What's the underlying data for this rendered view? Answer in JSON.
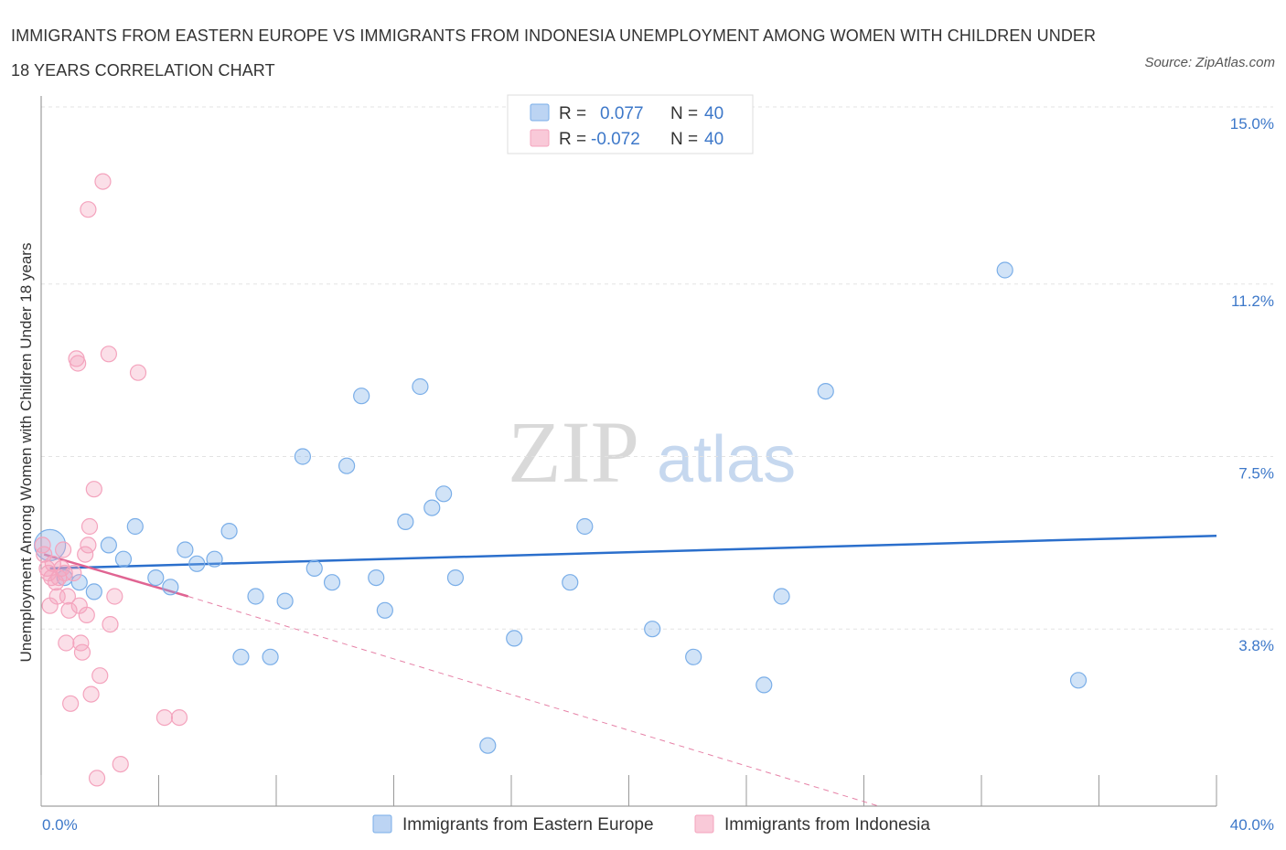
{
  "title": "IMMIGRANTS FROM EASTERN EUROPE VS IMMIGRANTS FROM INDONESIA UNEMPLOYMENT AMONG WOMEN WITH CHILDREN UNDER 18 YEARS CORRELATION CHART",
  "source": "Source: ZipAtlas.com",
  "watermark": {
    "zip": "ZIP",
    "atlas": "atlas"
  },
  "chart_data": {
    "type": "scatter",
    "title": "IMMIGRANTS FROM EASTERN EUROPE VS IMMIGRANTS FROM INDONESIA UNEMPLOYMENT AMONG WOMEN WITH CHILDREN UNDER 18 YEARS CORRELATION CHART",
    "xlabel": "",
    "ylabel": "Unemployment Among Women with Children Under 18 years",
    "xlim": [
      0,
      40
    ],
    "ylim": [
      0,
      15
    ],
    "x_tick_labels": [
      "0.0%",
      "40.0%"
    ],
    "y_ticks": [
      3.8,
      7.5,
      11.2,
      15.0
    ],
    "y_tick_labels": [
      "3.8%",
      "7.5%",
      "11.2%",
      "15.0%"
    ],
    "grid": true,
    "legend_position": "top-center",
    "series": [
      {
        "name": "Immigrants from Eastern Europe",
        "color": "#7aaee8",
        "line_color": "#2b6fcc",
        "R": "0.077",
        "N": "40",
        "trend": {
          "x": [
            0.3,
            40
          ],
          "y": [
            5.1,
            5.8
          ]
        },
        "points": [
          {
            "x": 0.3,
            "y": 5.6,
            "big": true
          },
          {
            "x": 0.8,
            "y": 4.9
          },
          {
            "x": 1.3,
            "y": 4.8
          },
          {
            "x": 1.8,
            "y": 4.6
          },
          {
            "x": 2.3,
            "y": 5.6
          },
          {
            "x": 2.8,
            "y": 5.3
          },
          {
            "x": 3.2,
            "y": 6.0
          },
          {
            "x": 3.9,
            "y": 4.9
          },
          {
            "x": 4.4,
            "y": 4.7
          },
          {
            "x": 4.9,
            "y": 5.5
          },
          {
            "x": 5.3,
            "y": 5.2
          },
          {
            "x": 5.9,
            "y": 5.3
          },
          {
            "x": 6.4,
            "y": 5.9
          },
          {
            "x": 6.8,
            "y": 3.2
          },
          {
            "x": 7.3,
            "y": 4.5
          },
          {
            "x": 7.8,
            "y": 3.2
          },
          {
            "x": 8.3,
            "y": 4.4
          },
          {
            "x": 8.9,
            "y": 7.5
          },
          {
            "x": 9.3,
            "y": 5.1
          },
          {
            "x": 9.9,
            "y": 4.8
          },
          {
            "x": 10.4,
            "y": 7.3
          },
          {
            "x": 10.9,
            "y": 8.8
          },
          {
            "x": 11.4,
            "y": 4.9
          },
          {
            "x": 11.7,
            "y": 4.2
          },
          {
            "x": 12.4,
            "y": 6.1
          },
          {
            "x": 12.9,
            "y": 9.0
          },
          {
            "x": 13.3,
            "y": 6.4
          },
          {
            "x": 13.7,
            "y": 6.7
          },
          {
            "x": 14.1,
            "y": 4.9
          },
          {
            "x": 15.2,
            "y": 1.3
          },
          {
            "x": 16.1,
            "y": 3.6
          },
          {
            "x": 18.0,
            "y": 4.8
          },
          {
            "x": 18.5,
            "y": 6.0
          },
          {
            "x": 20.8,
            "y": 3.8
          },
          {
            "x": 22.2,
            "y": 3.2
          },
          {
            "x": 24.6,
            "y": 2.6
          },
          {
            "x": 25.2,
            "y": 4.5
          },
          {
            "x": 26.7,
            "y": 8.9
          },
          {
            "x": 32.8,
            "y": 11.5
          },
          {
            "x": 35.3,
            "y": 2.7
          }
        ]
      },
      {
        "name": "Immigrants from Indonesia",
        "color": "#f4a3bd",
        "line_color": "#e06492",
        "R": "-0.072",
        "N": "40",
        "trend": {
          "x": [
            0.1,
            5.0
          ],
          "y": [
            5.4,
            4.5
          ]
        },
        "trend_dashed": {
          "x": [
            5.0,
            28.5
          ],
          "y": [
            4.5,
            0.0
          ]
        },
        "points": [
          {
            "x": 0.05,
            "y": 5.6
          },
          {
            "x": 0.1,
            "y": 5.4
          },
          {
            "x": 0.2,
            "y": 5.1
          },
          {
            "x": 0.25,
            "y": 5.0
          },
          {
            "x": 0.3,
            "y": 4.3
          },
          {
            "x": 0.35,
            "y": 4.9
          },
          {
            "x": 0.4,
            "y": 5.2
          },
          {
            "x": 0.5,
            "y": 4.8
          },
          {
            "x": 0.6,
            "y": 4.9
          },
          {
            "x": 0.7,
            "y": 5.1
          },
          {
            "x": 0.75,
            "y": 5.5
          },
          {
            "x": 0.8,
            "y": 5.0
          },
          {
            "x": 0.85,
            "y": 3.5
          },
          {
            "x": 0.9,
            "y": 4.5
          },
          {
            "x": 0.95,
            "y": 4.2
          },
          {
            "x": 1.0,
            "y": 2.2
          },
          {
            "x": 1.1,
            "y": 5.0
          },
          {
            "x": 1.2,
            "y": 9.6
          },
          {
            "x": 1.25,
            "y": 9.5
          },
          {
            "x": 1.3,
            "y": 4.3
          },
          {
            "x": 1.35,
            "y": 3.5
          },
          {
            "x": 1.4,
            "y": 3.3
          },
          {
            "x": 1.5,
            "y": 5.4
          },
          {
            "x": 1.55,
            "y": 4.1
          },
          {
            "x": 1.6,
            "y": 5.6
          },
          {
            "x": 1.65,
            "y": 6.0
          },
          {
            "x": 1.7,
            "y": 2.4
          },
          {
            "x": 1.6,
            "y": 12.8
          },
          {
            "x": 1.8,
            "y": 6.8
          },
          {
            "x": 1.9,
            "y": 0.6
          },
          {
            "x": 2.0,
            "y": 2.8
          },
          {
            "x": 2.1,
            "y": 13.4
          },
          {
            "x": 2.3,
            "y": 9.7
          },
          {
            "x": 2.35,
            "y": 3.9
          },
          {
            "x": 2.5,
            "y": 4.5
          },
          {
            "x": 2.7,
            "y": 0.9
          },
          {
            "x": 3.3,
            "y": 9.3
          },
          {
            "x": 4.2,
            "y": 1.9
          },
          {
            "x": 4.7,
            "y": 1.9
          },
          {
            "x": 0.55,
            "y": 4.5
          }
        ]
      }
    ]
  }
}
